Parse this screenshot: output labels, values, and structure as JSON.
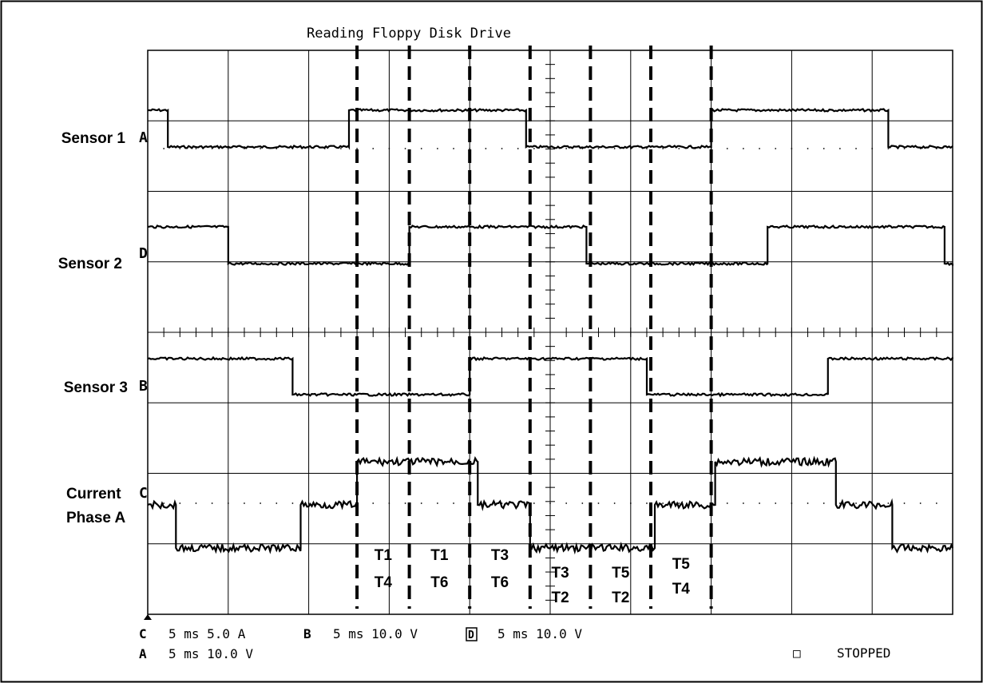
{
  "chart_data": {
    "type": "line",
    "title": "Reading Floppy Disk Drive",
    "time_div": "5 ms",
    "x_range_divisions": [
      0,
      10
    ],
    "x_transitions_div": [
      0.5,
      2.5,
      4.0,
      4.7,
      5.5,
      7.0,
      9.0,
      9.45
    ],
    "dashed_markers_div": [
      2.6,
      3.25,
      4.0,
      4.75,
      5.5,
      6.25,
      7.0
    ],
    "segment_labels": [
      {
        "top": "T1",
        "bottom": "T4"
      },
      {
        "top": "T1",
        "bottom": "T6"
      },
      {
        "top": "T3",
        "bottom": "T6"
      },
      {
        "top": "T3",
        "bottom": "T2"
      },
      {
        "top": "T5",
        "bottom": "T2"
      },
      {
        "top": "T5",
        "bottom": "T4"
      }
    ],
    "series": [
      {
        "name": "Sensor 1",
        "channel": "A",
        "scale": "10.0 V",
        "points": [
          [
            0,
            "high"
          ],
          [
            0.25,
            "low"
          ],
          [
            2.5,
            "high"
          ],
          [
            4.7,
            "low"
          ],
          [
            7.0,
            "high"
          ],
          [
            9.2,
            "low"
          ],
          [
            10,
            "low"
          ]
        ]
      },
      {
        "name": "Sensor 2",
        "channel": "D",
        "scale": "10.0 V",
        "points": [
          [
            0,
            "high"
          ],
          [
            1.0,
            "low"
          ],
          [
            3.25,
            "high"
          ],
          [
            5.45,
            "low"
          ],
          [
            7.7,
            "high"
          ],
          [
            9.9,
            "low"
          ],
          [
            10,
            "low"
          ]
        ]
      },
      {
        "name": "Sensor 3",
        "channel": "B",
        "scale": "10.0 V",
        "points": [
          [
            0,
            "high"
          ],
          [
            1.8,
            "low"
          ],
          [
            4.0,
            "high"
          ],
          [
            6.2,
            "low"
          ],
          [
            8.45,
            "high"
          ],
          [
            10,
            "high"
          ]
        ]
      },
      {
        "name": "Current Phase A",
        "channel": "C",
        "scale": "5.0 A",
        "points": [
          [
            0,
            "mid"
          ],
          [
            0.35,
            "low"
          ],
          [
            1.9,
            "mid"
          ],
          [
            2.6,
            "high"
          ],
          [
            4.1,
            "mid"
          ],
          [
            4.75,
            "low"
          ],
          [
            6.3,
            "mid"
          ],
          [
            7.05,
            "high"
          ],
          [
            8.55,
            "mid"
          ],
          [
            9.25,
            "low"
          ],
          [
            10,
            "low"
          ]
        ]
      }
    ],
    "grid": true
  },
  "labels": {
    "sensor1": "Sensor 1",
    "sensor2": "Sensor 2",
    "sensor3": "Sensor 3",
    "current_line1": "Current",
    "current_line2": "Phase A"
  },
  "channel_markers": {
    "a": "A",
    "d": "D",
    "b": "B",
    "c": "C"
  },
  "readouts": {
    "c_ch": "C",
    "c_text": "5 ms 5.0 A",
    "b_ch": "B",
    "b_text": "5 ms 10.0 V",
    "d_ch": "D",
    "d_text": "5 ms 10.0 V",
    "a_ch": "A",
    "a_text": "5 ms 10.0 V"
  },
  "status": {
    "indicator": "□",
    "text": "STOPPED"
  }
}
